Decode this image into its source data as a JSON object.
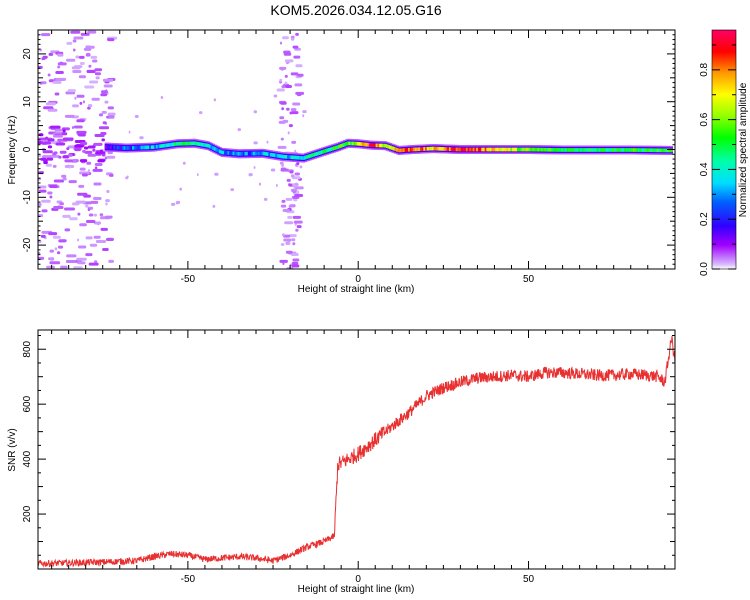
{
  "figure": {
    "title": "KOM5.2026.034.12.05.G16"
  },
  "chart_data": [
    {
      "type": "heatmap",
      "title": "KOM5.2026.034.12.05.G16",
      "xlabel": "Height of straight line (km)",
      "ylabel": "Frequency (Hz)",
      "xlim": [
        -94,
        93
      ],
      "ylim": [
        -25,
        25
      ],
      "xticks": [
        -50,
        0,
        50
      ],
      "yticks": [
        -20,
        -10,
        0,
        10,
        20
      ],
      "colorbar": {
        "label": "Normalized spectral amplitude",
        "range": [
          0,
          0.96
        ],
        "ticks": [
          0.0,
          0.2,
          0.4,
          0.6,
          0.8
        ],
        "colormap": "rainbow"
      },
      "main_track": [
        {
          "x": -74,
          "freq": 0.5,
          "amp": 0.15
        },
        {
          "x": -68,
          "freq": 0.3,
          "amp": 0.25
        },
        {
          "x": -60,
          "freq": 0.5,
          "amp": 0.35
        },
        {
          "x": -53,
          "freq": 1.2,
          "amp": 0.45
        },
        {
          "x": -48,
          "freq": 1.3,
          "amp": 0.5
        },
        {
          "x": -44,
          "freq": 0.8,
          "amp": 0.4
        },
        {
          "x": -40,
          "freq": -0.6,
          "amp": 0.3
        },
        {
          "x": -35,
          "freq": -0.9,
          "amp": 0.25
        },
        {
          "x": -28,
          "freq": -0.8,
          "amp": 0.3
        },
        {
          "x": -22,
          "freq": -1.5,
          "amp": 0.35
        },
        {
          "x": -16,
          "freq": -1.8,
          "amp": 0.4
        },
        {
          "x": -10,
          "freq": -0.4,
          "amp": 0.45
        },
        {
          "x": -6,
          "freq": 0.5,
          "amp": 0.5
        },
        {
          "x": -3,
          "freq": 1.3,
          "amp": 0.55
        },
        {
          "x": 0,
          "freq": 1.2,
          "amp": 0.6
        },
        {
          "x": 4,
          "freq": 0.9,
          "amp": 0.95
        },
        {
          "x": 8,
          "freq": 0.8,
          "amp": 0.6
        },
        {
          "x": 12,
          "freq": -0.2,
          "amp": 0.8
        },
        {
          "x": 16,
          "freq": 0.0,
          "amp": 0.85
        },
        {
          "x": 22,
          "freq": 0.2,
          "amp": 0.7
        },
        {
          "x": 30,
          "freq": 0.0,
          "amp": 0.9
        },
        {
          "x": 40,
          "freq": 0.0,
          "amp": 0.75
        },
        {
          "x": 50,
          "freq": 0.0,
          "amp": 0.55
        },
        {
          "x": 60,
          "freq": -0.1,
          "amp": 0.5
        },
        {
          "x": 70,
          "freq": -0.1,
          "amp": 0.5
        },
        {
          "x": 80,
          "freq": -0.1,
          "amp": 0.5
        },
        {
          "x": 92,
          "freq": -0.2,
          "amp": 0.5
        }
      ]
    },
    {
      "type": "line",
      "xlabel": "Height of straight line (km)",
      "ylabel": "SNR (v/v)",
      "xlim": [
        -94,
        93
      ],
      "ylim": [
        0,
        870
      ],
      "xticks": [
        -50,
        0,
        50
      ],
      "yticks": [
        200,
        400,
        600,
        800
      ],
      "color": "#e83030",
      "series": [
        {
          "x": [
            -94,
            -85,
            -75,
            -65,
            -60,
            -55,
            -50,
            -45,
            -40,
            -35,
            -30,
            -25,
            -20,
            -15,
            -10,
            -7,
            -6,
            -5,
            0,
            5,
            10,
            15,
            20,
            25,
            30,
            35,
            40,
            45,
            50,
            55,
            60,
            65,
            70,
            75,
            80,
            85,
            88,
            90,
            91,
            92,
            93
          ],
          "values": [
            20,
            22,
            25,
            30,
            45,
            55,
            50,
            35,
            40,
            45,
            40,
            30,
            50,
            80,
            100,
            120,
            380,
            385,
            420,
            470,
            520,
            570,
            630,
            660,
            680,
            695,
            700,
            705,
            700,
            715,
            715,
            710,
            705,
            705,
            710,
            705,
            700,
            680,
            760,
            840,
            760
          ]
        }
      ]
    }
  ],
  "colors": {
    "snr_line": "#e83030",
    "axes": "#000000",
    "background": "#ffffff"
  }
}
